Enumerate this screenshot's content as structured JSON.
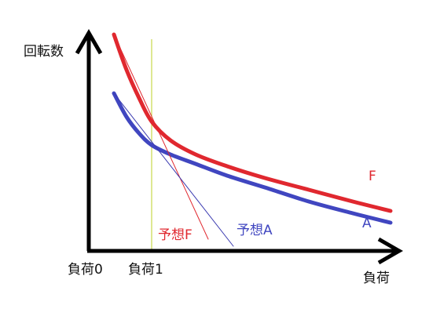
{
  "colors": {
    "axis": "#000000",
    "curve_F": "#e0282f",
    "curve_A": "#4046c0",
    "tangent_F": "#e0282f",
    "tangent_A": "#3a3ab0",
    "marker_line": "#c8d84a",
    "text": "#111111"
  },
  "chart_data": {
    "type": "line",
    "title": "",
    "ylabel": "回転数",
    "xlabel": "負荷",
    "x_tick_labels": [
      {
        "text": "負荷0",
        "x": 0
      },
      {
        "text": "負荷1",
        "x": 1
      }
    ],
    "xlim": [
      0,
      4.9
    ],
    "ylim": [
      0,
      1
    ],
    "grid": false,
    "series": [
      {
        "name": "F",
        "kind": "curve",
        "color": "#e0282f",
        "points": [
          [
            0.4,
            0.92
          ],
          [
            0.6,
            0.77
          ],
          [
            0.8,
            0.65
          ],
          [
            1.0,
            0.55
          ],
          [
            1.3,
            0.47
          ],
          [
            1.7,
            0.41
          ],
          [
            2.2,
            0.36
          ],
          [
            2.8,
            0.31
          ],
          [
            3.5,
            0.26
          ],
          [
            4.2,
            0.21
          ],
          [
            4.8,
            0.17
          ]
        ]
      },
      {
        "name": "A",
        "kind": "curve",
        "color": "#4046c0",
        "points": [
          [
            0.4,
            0.67
          ],
          [
            0.6,
            0.57
          ],
          [
            0.8,
            0.5
          ],
          [
            1.0,
            0.45
          ],
          [
            1.3,
            0.41
          ],
          [
            1.7,
            0.37
          ],
          [
            2.2,
            0.32
          ],
          [
            2.8,
            0.27
          ],
          [
            3.5,
            0.21
          ],
          [
            4.2,
            0.16
          ],
          [
            4.8,
            0.12
          ]
        ]
      },
      {
        "name": "予想F",
        "kind": "tangent",
        "color": "#e0282f",
        "points": [
          [
            0.4,
            0.92
          ],
          [
            1.9,
            0.05
          ]
        ]
      },
      {
        "name": "予想A",
        "kind": "tangent",
        "color": "#3a3ab0",
        "points": [
          [
            0.4,
            0.67
          ],
          [
            2.3,
            0.02
          ]
        ]
      }
    ],
    "vertical_marker": {
      "x": 1.0,
      "color": "#c8d84a"
    },
    "annotations": [
      {
        "text": "F",
        "color": "#e0282f",
        "x": 4.45,
        "y": 0.3
      },
      {
        "text": "A",
        "color": "#4046c0",
        "x": 4.35,
        "y": 0.1
      },
      {
        "text": "予想F",
        "color": "#e0282f",
        "x": 1.1,
        "y": 0.05
      },
      {
        "text": "予想A",
        "color": "#4046c0",
        "x": 2.35,
        "y": 0.07
      }
    ]
  }
}
